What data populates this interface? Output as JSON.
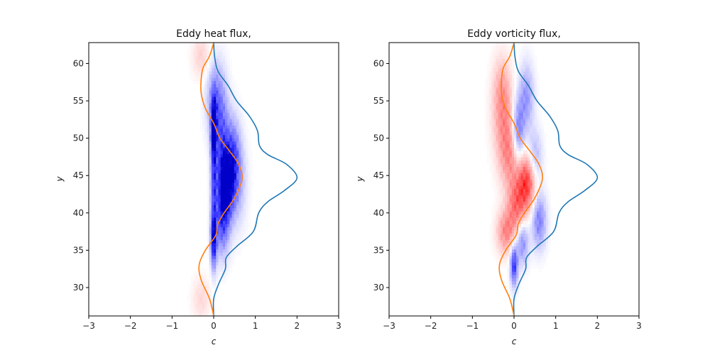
{
  "chart_data": [
    {
      "type": "heatmap",
      "title": "Eddy heat flux,",
      "xlabel": "c",
      "ylabel": "y",
      "xlim": [
        -3,
        3
      ],
      "ylim": [
        26.2,
        62.8
      ],
      "xticks": [
        "−3",
        "−2",
        "−1",
        "0",
        "1",
        "2",
        "3"
      ],
      "yticks": [
        "30",
        "35",
        "40",
        "45",
        "50",
        "55",
        "60"
      ],
      "colormap": "bwr",
      "positive_color": "#ff0000",
      "negative_color": "#0000ff",
      "grid": false,
      "heatmap_blobs": [
        {
          "c": 0.0,
          "y": 36.5,
          "amp": -1.0,
          "sc": 0.05,
          "sy": 2.6
        },
        {
          "c": 0.0,
          "y": 51.0,
          "amp": -1.0,
          "sc": 0.05,
          "sy": 3.2
        },
        {
          "c": 0.0,
          "y": 43.5,
          "amp": -0.55,
          "sc": 0.05,
          "sy": 3.0
        },
        {
          "c": 0.3,
          "y": 43.5,
          "amp": -0.9,
          "sc": 0.12,
          "sy": 3.0
        },
        {
          "c": 0.45,
          "y": 47.5,
          "amp": -0.55,
          "sc": 0.12,
          "sy": 3.5
        },
        {
          "c": 0.2,
          "y": 48.0,
          "amp": -0.6,
          "sc": 0.12,
          "sy": 5.0
        },
        {
          "c": 0.2,
          "y": 38.5,
          "amp": -0.55,
          "sc": 0.12,
          "sy": 3.0
        },
        {
          "c": 0.05,
          "y": 55.0,
          "amp": -0.45,
          "sc": 0.15,
          "sy": 3.5
        },
        {
          "c": 0.55,
          "y": 44.5,
          "amp": -0.35,
          "sc": 0.15,
          "sy": 4.0
        },
        {
          "c": -0.3,
          "y": 61.0,
          "amp": 0.18,
          "sc": 0.15,
          "sy": 2.0
        },
        {
          "c": -0.3,
          "y": 28.5,
          "amp": 0.15,
          "sc": 0.15,
          "sy": 2.0
        }
      ],
      "series": [
        {
          "color": "#1f77b4",
          "points": [
            [
              0.0,
              26.2
            ],
            [
              0.0,
              28.5
            ],
            [
              0.12,
              30.5
            ],
            [
              0.28,
              32.5
            ],
            [
              0.3,
              34.0
            ],
            [
              0.55,
              35.5
            ],
            [
              0.95,
              37.5
            ],
            [
              1.08,
              40.0
            ],
            [
              1.3,
              41.5
            ],
            [
              1.7,
              43.0
            ],
            [
              2.0,
              44.7
            ],
            [
              1.75,
              46.5
            ],
            [
              1.3,
              47.8
            ],
            [
              1.1,
              49.0
            ],
            [
              1.05,
              51.0
            ],
            [
              0.85,
              53.0
            ],
            [
              0.55,
              55.0
            ],
            [
              0.35,
              57.0
            ],
            [
              0.1,
              59.0
            ],
            [
              0.02,
              61.0
            ],
            [
              0.0,
              62.8
            ]
          ]
        },
        {
          "color": "#ff7f0e",
          "points": [
            [
              0.0,
              26.2
            ],
            [
              -0.1,
              28.5
            ],
            [
              -0.3,
              31.0
            ],
            [
              -0.35,
              33.0
            ],
            [
              -0.2,
              35.0
            ],
            [
              0.05,
              37.0
            ],
            [
              0.1,
              38.5
            ],
            [
              0.25,
              40.0
            ],
            [
              0.5,
              42.0
            ],
            [
              0.68,
              44.5
            ],
            [
              0.6,
              46.5
            ],
            [
              0.35,
              48.5
            ],
            [
              0.15,
              50.0
            ],
            [
              0.0,
              52.0
            ],
            [
              -0.2,
              54.0
            ],
            [
              -0.3,
              56.0
            ],
            [
              -0.3,
              58.0
            ],
            [
              -0.25,
              59.5
            ],
            [
              -0.1,
              61.0
            ],
            [
              0.0,
              62.8
            ]
          ]
        }
      ]
    },
    {
      "type": "heatmap",
      "title": "Eddy vorticity flux,",
      "xlabel": "c",
      "ylabel": "y",
      "xlim": [
        -3,
        3
      ],
      "ylim": [
        26.2,
        62.8
      ],
      "xticks": [
        "−3",
        "−2",
        "−1",
        "0",
        "1",
        "2",
        "3"
      ],
      "yticks": [
        "30",
        "35",
        "40",
        "45",
        "50",
        "55",
        "60"
      ],
      "colormap": "bwr",
      "positive_color": "#ff0000",
      "negative_color": "#0000ff",
      "grid": false,
      "heatmap_blobs": [
        {
          "c": 0.3,
          "y": 44.0,
          "amp": 0.75,
          "sc": 0.15,
          "sy": 2.5
        },
        {
          "c": 0.05,
          "y": 41.0,
          "amp": 0.5,
          "sc": 0.15,
          "sy": 2.5
        },
        {
          "c": -0.2,
          "y": 37.5,
          "amp": 0.45,
          "sc": 0.15,
          "sy": 2.0
        },
        {
          "c": -0.1,
          "y": 47.5,
          "amp": 0.4,
          "sc": 0.18,
          "sy": 3.0
        },
        {
          "c": -0.25,
          "y": 52.5,
          "amp": 0.35,
          "sc": 0.18,
          "sy": 3.5
        },
        {
          "c": -0.3,
          "y": 57.0,
          "amp": 0.25,
          "sc": 0.15,
          "sy": 3.0
        },
        {
          "c": 0.0,
          "y": 33.0,
          "amp": -0.8,
          "sc": 0.06,
          "sy": 1.8
        },
        {
          "c": 0.6,
          "y": 39.0,
          "amp": -0.5,
          "sc": 0.12,
          "sy": 2.5
        },
        {
          "c": 0.1,
          "y": 51.0,
          "amp": -0.55,
          "sc": 0.1,
          "sy": 3.0
        },
        {
          "c": 0.3,
          "y": 55.5,
          "amp": -0.4,
          "sc": 0.12,
          "sy": 3.0
        },
        {
          "c": 0.5,
          "y": 47.5,
          "amp": -0.3,
          "sc": 0.12,
          "sy": 2.5
        },
        {
          "c": 0.2,
          "y": 36.0,
          "amp": -0.45,
          "sc": 0.1,
          "sy": 2.0
        }
      ],
      "series": [
        {
          "color": "#1f77b4",
          "points": [
            [
              0.0,
              26.2
            ],
            [
              0.0,
              28.5
            ],
            [
              0.12,
              30.5
            ],
            [
              0.28,
              32.5
            ],
            [
              0.3,
              34.0
            ],
            [
              0.55,
              35.5
            ],
            [
              0.95,
              37.5
            ],
            [
              1.08,
              40.0
            ],
            [
              1.3,
              41.5
            ],
            [
              1.7,
              43.0
            ],
            [
              2.0,
              44.7
            ],
            [
              1.75,
              46.5
            ],
            [
              1.3,
              47.8
            ],
            [
              1.1,
              49.0
            ],
            [
              1.05,
              51.0
            ],
            [
              0.85,
              53.0
            ],
            [
              0.55,
              55.0
            ],
            [
              0.35,
              57.0
            ],
            [
              0.1,
              59.0
            ],
            [
              0.02,
              61.0
            ],
            [
              0.0,
              62.8
            ]
          ]
        },
        {
          "color": "#ff7f0e",
          "points": [
            [
              0.0,
              26.2
            ],
            [
              -0.1,
              28.5
            ],
            [
              -0.3,
              31.0
            ],
            [
              -0.35,
              33.0
            ],
            [
              -0.2,
              35.0
            ],
            [
              0.05,
              37.0
            ],
            [
              0.1,
              38.5
            ],
            [
              0.25,
              40.0
            ],
            [
              0.5,
              42.0
            ],
            [
              0.68,
              44.5
            ],
            [
              0.6,
              46.5
            ],
            [
              0.35,
              48.5
            ],
            [
              0.15,
              50.0
            ],
            [
              0.0,
              52.0
            ],
            [
              -0.2,
              54.0
            ],
            [
              -0.3,
              56.0
            ],
            [
              -0.3,
              58.0
            ],
            [
              -0.25,
              59.5
            ],
            [
              -0.1,
              61.0
            ],
            [
              0.0,
              62.8
            ]
          ]
        }
      ]
    }
  ]
}
